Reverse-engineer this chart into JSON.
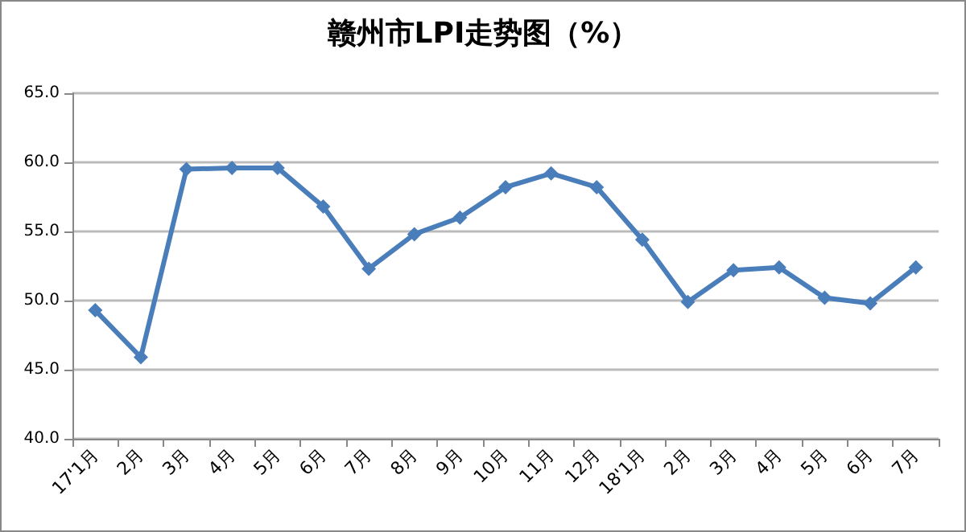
{
  "chart_data": {
    "type": "line",
    "title": "赣州市LPI走势图（%）",
    "categories": [
      "17'1月",
      "2月",
      "3月",
      "4月",
      "5月",
      "6月",
      "7月",
      "8月",
      "9月",
      "10月",
      "11月",
      "12月",
      "18'1月",
      "2月",
      "3月",
      "4月",
      "5月",
      "6月",
      "7月"
    ],
    "series": [
      {
        "color": "#4a7ebb",
        "values": [
          49.3,
          45.9,
          59.5,
          59.6,
          59.6,
          56.8,
          52.3,
          54.8,
          56.0,
          58.2,
          59.2,
          58.2,
          54.4,
          49.9,
          52.2,
          52.4,
          50.2,
          49.8,
          52.4
        ]
      }
    ],
    "ylim": [
      40,
      65
    ],
    "yticks": [
      {
        "value": 40,
        "label": "40.0"
      },
      {
        "value": 45,
        "label": "45.0"
      },
      {
        "value": 50,
        "label": "50.0"
      },
      {
        "value": 55,
        "label": "55.0"
      },
      {
        "value": 60,
        "label": "60.0"
      },
      {
        "value": 65,
        "label": "65.0"
      }
    ],
    "grid": "y",
    "marker": "diamond",
    "line_style": "solid"
  }
}
